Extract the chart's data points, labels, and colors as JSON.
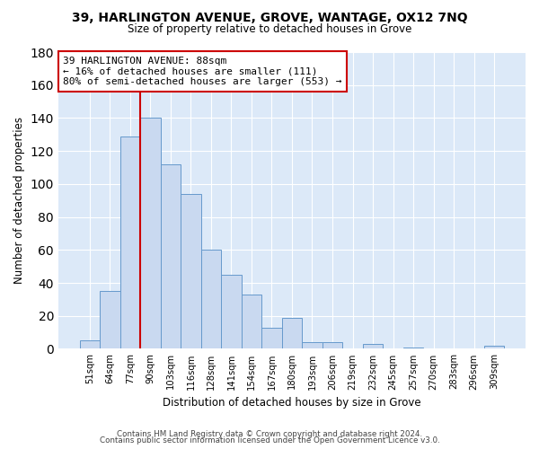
{
  "title": "39, HARLINGTON AVENUE, GROVE, WANTAGE, OX12 7NQ",
  "subtitle": "Size of property relative to detached houses in Grove",
  "xlabel": "Distribution of detached houses by size in Grove",
  "ylabel": "Number of detached properties",
  "bar_labels": [
    "51sqm",
    "64sqm",
    "77sqm",
    "90sqm",
    "103sqm",
    "116sqm",
    "128sqm",
    "141sqm",
    "154sqm",
    "167sqm",
    "180sqm",
    "193sqm",
    "206sqm",
    "219sqm",
    "232sqm",
    "245sqm",
    "257sqm",
    "270sqm",
    "283sqm",
    "296sqm",
    "309sqm"
  ],
  "bar_values": [
    5,
    35,
    129,
    140,
    112,
    94,
    60,
    45,
    33,
    13,
    19,
    4,
    4,
    0,
    3,
    0,
    1,
    0,
    0,
    0,
    2
  ],
  "bar_color": "#c9d9f0",
  "bar_edge_color": "#6699cc",
  "vline_color": "#cc0000",
  "annotation_text": "39 HARLINGTON AVENUE: 88sqm\n← 16% of detached houses are smaller (111)\n80% of semi-detached houses are larger (553) →",
  "annotation_box_color": "white",
  "annotation_box_edge": "#cc0000",
  "ylim": [
    0,
    180
  ],
  "yticks": [
    0,
    20,
    40,
    60,
    80,
    100,
    120,
    140,
    160,
    180
  ],
  "footer1": "Contains HM Land Registry data © Crown copyright and database right 2024.",
  "footer2": "Contains public sector information licensed under the Open Government Licence v3.0.",
  "plot_bg": "#dce9f8",
  "grid_color": "white"
}
